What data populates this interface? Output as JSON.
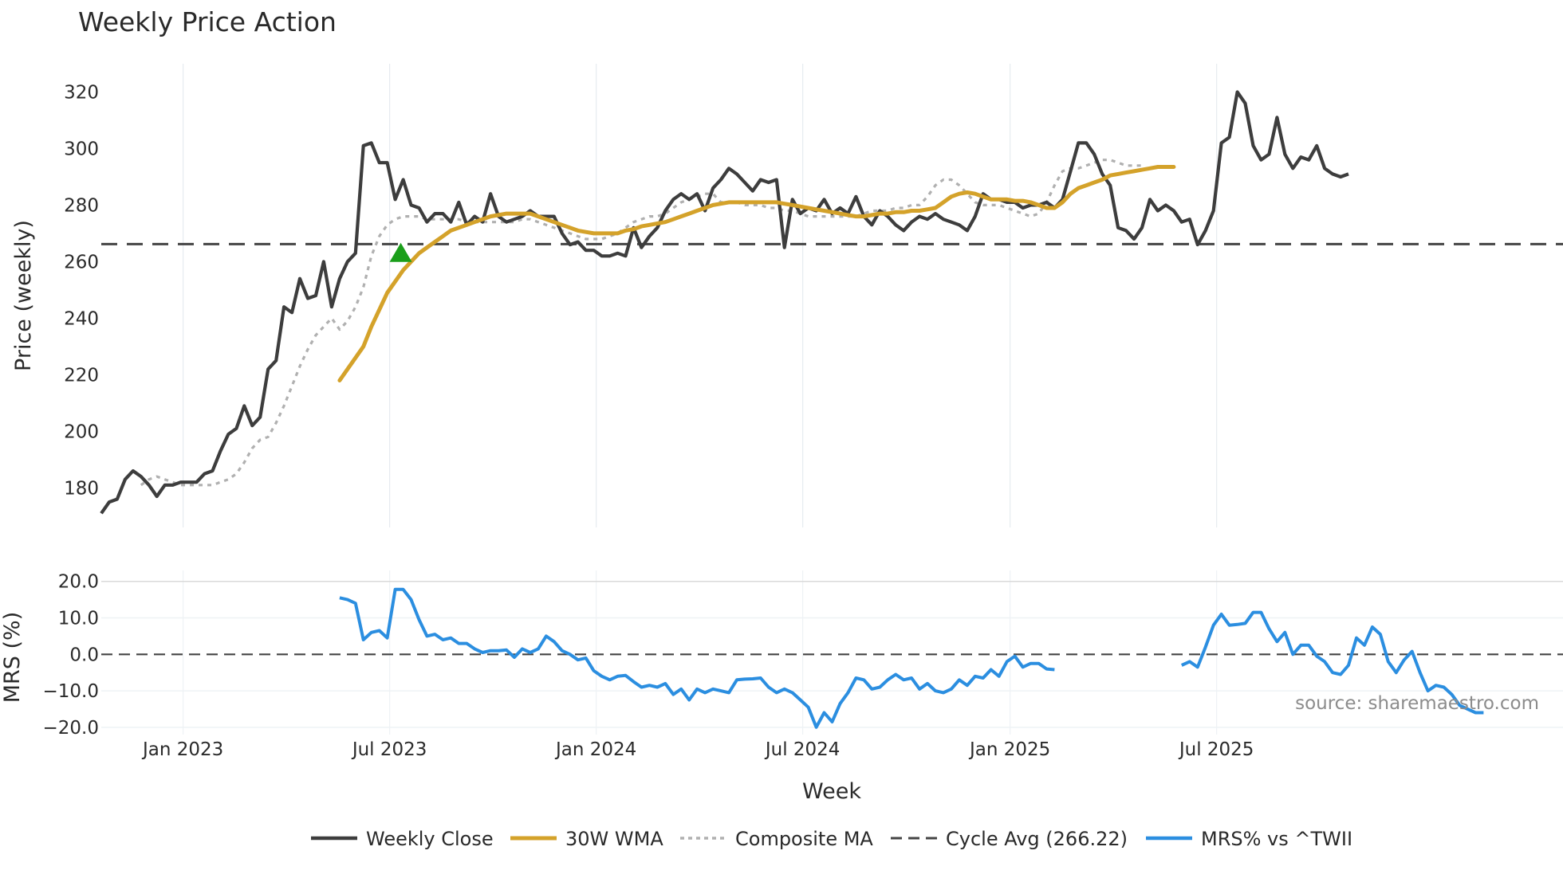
{
  "chart_data": {
    "type": "line",
    "title": "Weekly Price Action",
    "xlabel": "Week",
    "x_ticks": [
      "Jan 2023",
      "Jul 2023",
      "Jan 2024",
      "Jul 2024",
      "Jan 2025",
      "Jul 2025"
    ],
    "x_range_weeks": [
      0,
      184
    ],
    "x_tick_weeks": [
      10.3,
      36.3,
      62.3,
      88.3,
      114.4,
      140.4
    ],
    "price_panel": {
      "ylabel": "Price (weekly)",
      "ylim": [
        166,
        330
      ],
      "y_ticks": [
        180,
        200,
        220,
        240,
        260,
        280,
        300,
        320
      ]
    },
    "mrs_panel": {
      "ylabel": "MRS (%)",
      "ylim": [
        -22,
        23
      ],
      "y_ticks": [
        "20.0",
        "10.0",
        "0.0",
        "−10.0",
        "−20.0"
      ],
      "y_tick_values": [
        20,
        10,
        0,
        -10,
        -20
      ]
    },
    "series": [
      {
        "name": "Weekly Close",
        "color": "#3d3d3d",
        "values": [
          171,
          175,
          176,
          183,
          186,
          184,
          181,
          177,
          181,
          181,
          182,
          182,
          182,
          185,
          186,
          193,
          199,
          201,
          209,
          202,
          205,
          222,
          225,
          244,
          242,
          254,
          247,
          248,
          260,
          244,
          254,
          260,
          263,
          301,
          302,
          295,
          295,
          282,
          289,
          280,
          279,
          274,
          277,
          277,
          274,
          281,
          273,
          276,
          274,
          284,
          276,
          274,
          275,
          276,
          278,
          276,
          276,
          276,
          270,
          266,
          267,
          264,
          264,
          262,
          262,
          263,
          262,
          272,
          265,
          269,
          272,
          278,
          282,
          284,
          282,
          284,
          278,
          286,
          289,
          293,
          291,
          288,
          285,
          289,
          288,
          289,
          265,
          282,
          277,
          279,
          278,
          282,
          277,
          279,
          277,
          283,
          276,
          273,
          278,
          276,
          273,
          271,
          274,
          276,
          275,
          277,
          275,
          274,
          273,
          271,
          276,
          284,
          282,
          282,
          281,
          281,
          279,
          280,
          280,
          281,
          279,
          282,
          292,
          302,
          302,
          298,
          291,
          287,
          272,
          271,
          268,
          272,
          282,
          278,
          280,
          278,
          274,
          275,
          266,
          271,
          278,
          302,
          304,
          320,
          316,
          301,
          296,
          298,
          311,
          298,
          293,
          297,
          296,
          301,
          293,
          291,
          290,
          291
        ],
        "values_start_week": 0
      },
      {
        "name": "30W WMA",
        "color": "#d4a22a",
        "values": [
          218,
          222,
          226,
          230,
          237,
          243,
          249,
          253,
          257,
          260,
          263,
          265,
          267,
          269,
          271,
          272,
          273,
          274,
          275,
          276,
          276.5,
          277,
          277,
          277,
          277,
          276,
          275,
          274,
          273,
          272,
          271,
          270.5,
          270,
          270,
          270,
          270,
          271,
          271.5,
          272.5,
          273,
          273.5,
          274,
          275,
          276,
          277,
          278,
          279,
          280,
          280.5,
          281,
          281,
          281,
          281,
          281,
          281,
          281,
          280.5,
          280,
          279.5,
          279,
          278.5,
          278,
          277.5,
          277,
          276.5,
          276,
          276,
          276.5,
          277,
          277,
          277.5,
          277.5,
          278,
          278,
          278.5,
          279,
          281,
          283,
          284,
          284.5,
          284,
          283,
          282,
          282,
          282,
          281.5,
          281.5,
          281,
          280,
          279,
          279,
          281,
          284,
          286,
          287,
          288,
          289,
          290.5,
          291,
          291.5,
          292,
          292.5,
          293,
          293.5,
          293.5,
          293.5
        ],
        "values_start_week": 30
      },
      {
        "name": "Composite MA",
        "color": "#b0b0b0",
        "values": [
          181,
          183,
          184,
          183,
          182,
          181,
          181,
          181,
          181,
          181,
          182,
          183,
          185,
          189,
          194,
          197,
          198,
          203,
          209,
          216,
          223,
          229,
          234,
          237,
          240,
          236,
          239,
          244,
          251,
          262,
          269,
          273,
          275,
          276,
          276,
          276,
          275,
          275,
          275,
          275,
          275,
          274,
          274,
          274,
          274,
          274,
          274,
          274,
          275,
          275,
          274,
          273,
          272,
          271,
          270,
          269,
          268,
          268,
          268,
          269,
          270,
          272,
          274,
          275,
          276,
          276,
          277,
          279,
          281,
          282,
          283,
          284,
          284,
          281,
          281,
          281,
          280,
          280,
          280,
          279,
          279,
          278,
          278,
          277,
          276,
          276,
          276,
          276,
          276,
          276,
          276,
          277,
          278,
          278,
          278,
          279,
          279,
          280,
          280,
          283,
          287,
          289,
          289,
          287,
          284,
          281,
          280,
          280,
          280,
          279,
          278,
          277,
          276,
          277,
          281,
          287,
          292,
          293,
          293,
          294,
          295,
          296,
          296,
          295,
          294,
          294,
          294
        ],
        "values_start_week": 5
      },
      {
        "name": "Cycle Avg (266.22)",
        "color": "#444444",
        "value": 266.22
      },
      {
        "name": "MRS% vs ^TWII",
        "color": "#2b8ee0",
        "segments": [
          {
            "start_week": 30,
            "values": [
              15.5,
              15,
              14,
              4,
              6,
              6.5,
              4.5,
              17.8,
              17.8,
              15,
              9.5,
              5,
              5.5,
              4,
              4.5,
              3,
              3,
              1.5,
              0.5,
              1,
              1,
              1.2,
              -0.8,
              1.5,
              0.5,
              1.5,
              5,
              3.5,
              1,
              0,
              -1.5,
              -1,
              -4.5,
              -6,
              -7,
              -6,
              -5.8,
              -7.5,
              -9,
              -8.5,
              -9,
              -8,
              -11,
              -9.5,
              -12.5,
              -9.5,
              -10.5,
              -9.5,
              -10,
              -10.5,
              -7,
              -6.8,
              -6.7,
              -6.5,
              -9,
              -10.5,
              -9.5,
              -10.5,
              -12.5,
              -14.5,
              -20,
              -16,
              -18.5,
              -13.5,
              -10.5,
              -6.5,
              -7,
              -9.5,
              -9,
              -7,
              -5.5,
              -7,
              -6.5,
              -9.5,
              -8,
              -10,
              -10.5,
              -9.5,
              -7,
              -8.5,
              -6,
              -6.5,
              -4.2,
              -6,
              -2,
              -0.5,
              -3.5,
              -2.5,
              -2.5,
              -4,
              -4.2
            ]
          },
          {
            "start_week": 136,
            "values": [
              -3,
              -2,
              -3.5,
              2,
              8,
              11,
              8,
              8.2,
              8.5,
              11.5,
              11.5,
              7,
              3.5,
              6,
              0,
              2.5,
              2.5,
              -0.5,
              -2,
              -5,
              -5.5,
              -3,
              4.5,
              2.5,
              7.5,
              5.5,
              -2,
              -5,
              -1.5,
              0.8,
              -5,
              -10,
              -8.5,
              -9,
              -11,
              -14,
              -15,
              -16,
              -16
            ]
          }
        ]
      }
    ],
    "annotations": [
      {
        "type": "triangle-up",
        "color": "#1a9e1a",
        "week": 37.7,
        "value": 263
      }
    ],
    "watermark": "source: sharemaestro.com",
    "legend": {
      "position": "bottom",
      "entries": [
        "Weekly Close",
        "30W WMA",
        "Composite MA",
        "Cycle Avg (266.22)",
        "MRS% vs ^TWII"
      ]
    }
  }
}
